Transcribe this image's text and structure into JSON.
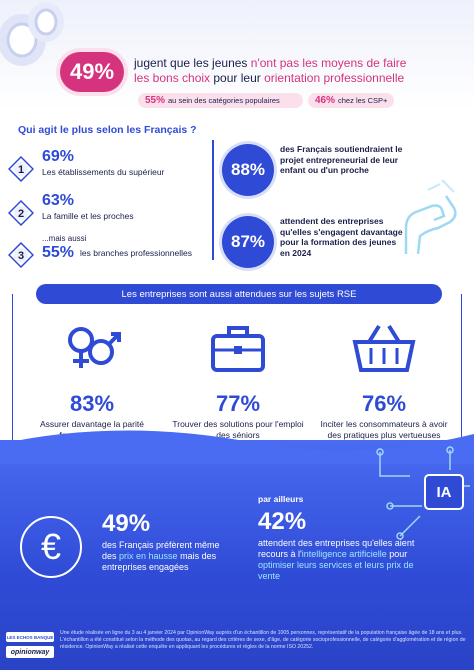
{
  "hero": {
    "stat": "49%",
    "line1_a": "jugent que les jeunes ",
    "line1_b": "n'ont pas les moyens de faire",
    "line2_a": "les bons choix",
    "line2_b": " pour leur ",
    "line2_c": "orientation professionnelle",
    "pill1_value": "55%",
    "pill1_text": "au sein des catégories populaires",
    "pill2_value": "46%",
    "pill2_text": "chez les CSP+"
  },
  "ranking": {
    "title": "Qui agit le plus selon les Français ?",
    "items": [
      {
        "rank": "1",
        "pct": "69%",
        "label": "Les établissements du supérieur"
      },
      {
        "rank": "2",
        "pct": "63%",
        "label": "La famille et les proches"
      },
      {
        "rank": "3",
        "pre": "...mais aussi",
        "pct": "55%",
        "label": "les branches professionnelles"
      }
    ]
  },
  "support": {
    "s1_pct": "88%",
    "s1_text": "des Français soutiendraient le projet entrepreneurial de leur enfant ou d'un proche",
    "s2_pct": "87%",
    "s2_text": "attendent des entreprises qu'elles s'engagent davantage pour la formation des jeunes en 2024"
  },
  "rse": {
    "title": "Les entreprises sont aussi attendues sur les sujets RSE",
    "items": [
      {
        "icon": "gender-symbols-icon",
        "pct": "83%",
        "text": "Assurer davantage la parité femmes/hommes"
      },
      {
        "icon": "briefcase-icon",
        "pct": "77%",
        "text": "Trouver des solutions pour l'emploi des séniors"
      },
      {
        "icon": "shopping-basket-icon",
        "pct": "76%",
        "text": "Inciter les consommateurs à avoir des pratiques plus vertueuses"
      }
    ]
  },
  "bottom": {
    "b1_pct": "49%",
    "b1_text_a": "des Français préfèrent même des ",
    "b1_text_b": "prix en hausse",
    "b1_text_c": " mais des entreprises engagées",
    "b2_pre": "par ailleurs",
    "b2_pct": "42%",
    "b2_text_a": "attendent des entreprises qu'elles aient recours à l'",
    "b2_text_b": "intelligence artificielle",
    "b2_text_c": " pour ",
    "b2_text_d": "optimiser leurs services et leurs prix de vente",
    "ia_label": "IA"
  },
  "footer": {
    "logo_top": "LES ECHOS BANQUE",
    "logo_bottom": "opinionway",
    "note": "Une étude réalisée en ligne du 3 au 4 janvier 2024 par OpinionWay auprès d'un échantillon de 1005 personnes, représentatif de la population française âgée de 18 ans et plus. L'échantillon a été constitué selon la méthode des quotas, au regard des critères de sexe, d'âge, de catégorie socioprofessionnelle, de catégorie d'agglomération et de région de résidence. OpinionWay a réalisé cette enquête en appliquant les procédures et règles de la norme ISO 20252."
  },
  "colors": {
    "primary": "#2f4bd6",
    "accent": "#d6337e",
    "dark": "#1a1f4b"
  }
}
